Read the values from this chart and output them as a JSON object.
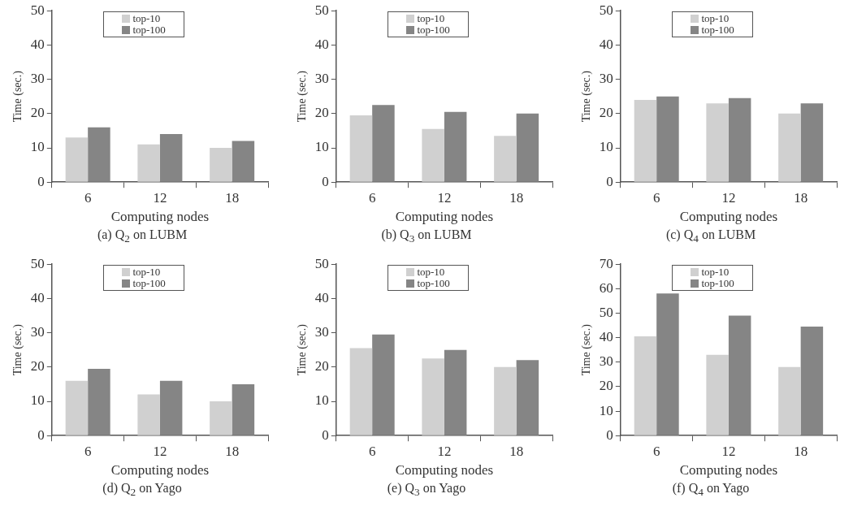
{
  "chart_data": [
    {
      "type": "bar",
      "title": "(a) Q$_{2}$ on LUBM",
      "xlabel": "Computing nodes",
      "ylabel": "Time (sec.)",
      "categories": [
        "6",
        "12",
        "18"
      ],
      "series": [
        {
          "name": "top-10",
          "color": "#d0d0d0",
          "values": [
            13,
            11,
            10
          ]
        },
        {
          "name": "top-100",
          "color": "#858585",
          "values": [
            16,
            14,
            12
          ]
        }
      ],
      "ylim": [
        0,
        50
      ],
      "yticks": [
        0,
        10,
        20,
        30,
        40,
        50
      ],
      "legend": "top"
    },
    {
      "type": "bar",
      "title": "(b) Q$_{3}$ on LUBM",
      "xlabel": "Computing nodes",
      "ylabel": "Time (sec.)",
      "categories": [
        "6",
        "12",
        "18"
      ],
      "series": [
        {
          "name": "top-10",
          "color": "#d0d0d0",
          "values": [
            19.5,
            15.5,
            13.5
          ]
        },
        {
          "name": "top-100",
          "color": "#858585",
          "values": [
            22.5,
            20.5,
            20
          ]
        }
      ],
      "ylim": [
        0,
        50
      ],
      "yticks": [
        0,
        10,
        20,
        30,
        40,
        50
      ],
      "legend": "top"
    },
    {
      "type": "bar",
      "title": "(c) Q$_{4}$ on LUBM",
      "xlabel": "Computing nodes",
      "ylabel": "Time (sec.)",
      "categories": [
        "6",
        "12",
        "18"
      ],
      "series": [
        {
          "name": "top-10",
          "color": "#d0d0d0",
          "values": [
            24,
            23,
            20
          ]
        },
        {
          "name": "top-100",
          "color": "#858585",
          "values": [
            25,
            24.5,
            23
          ]
        }
      ],
      "ylim": [
        0,
        50
      ],
      "yticks": [
        0,
        10,
        20,
        30,
        40,
        50
      ],
      "legend": "top"
    },
    {
      "type": "bar",
      "title": "(d) Q$_{2}$ on Yago",
      "xlabel": "Computing nodes",
      "ylabel": "Time (sec.)",
      "categories": [
        "6",
        "12",
        "18"
      ],
      "series": [
        {
          "name": "top-10",
          "color": "#d0d0d0",
          "values": [
            16,
            12,
            10
          ]
        },
        {
          "name": "top-100",
          "color": "#858585",
          "values": [
            19.5,
            16,
            15
          ]
        }
      ],
      "ylim": [
        0,
        50
      ],
      "yticks": [
        0,
        10,
        20,
        30,
        40,
        50
      ],
      "legend": "top"
    },
    {
      "type": "bar",
      "title": "(e) Q$_{3}$ on Yago",
      "xlabel": "Computing nodes",
      "ylabel": "Time (sec.)",
      "categories": [
        "6",
        "12",
        "18"
      ],
      "series": [
        {
          "name": "top-10",
          "color": "#d0d0d0",
          "values": [
            25.5,
            22.5,
            20
          ]
        },
        {
          "name": "top-100",
          "color": "#858585",
          "values": [
            29.5,
            25,
            22
          ]
        }
      ],
      "ylim": [
        0,
        50
      ],
      "yticks": [
        0,
        10,
        20,
        30,
        40,
        50
      ],
      "legend": "top"
    },
    {
      "type": "bar",
      "title": "(f) Q$_{4}$ on Yago",
      "xlabel": "Computing nodes",
      "ylabel": "Time (sec.)",
      "categories": [
        "6",
        "12",
        "18"
      ],
      "series": [
        {
          "name": "top-10",
          "color": "#d0d0d0",
          "values": [
            40.5,
            33,
            28
          ]
        },
        {
          "name": "top-100",
          "color": "#858585",
          "values": [
            58,
            49,
            44.5
          ]
        }
      ],
      "ylim": [
        0,
        70
      ],
      "yticks": [
        0,
        10,
        20,
        30,
        40,
        50,
        60,
        70
      ],
      "legend": "top"
    }
  ]
}
